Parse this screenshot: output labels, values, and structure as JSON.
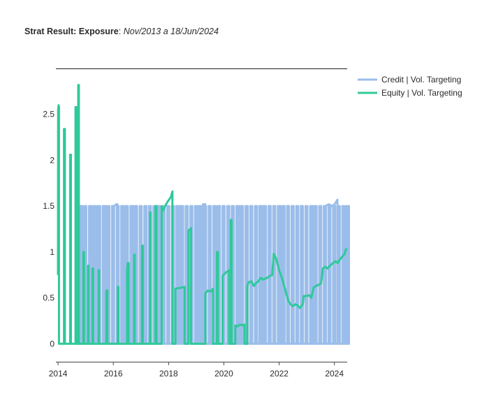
{
  "title": {
    "bold": "Strat Result: Exposure",
    "separator": ": ",
    "italic": "Nov/2013 a 18/Jun/2024"
  },
  "chart_data": {
    "type": "line",
    "xlabel": "",
    "ylabel": "",
    "x_range": [
      "2013-12-31",
      "2024-06-18"
    ],
    "ylim": [
      -0.15,
      3.0
    ],
    "x_ticks": [
      "2014",
      "2016",
      "2018",
      "2020",
      "2022",
      "2024"
    ],
    "y_ticks": [
      "0",
      "0.5",
      "1",
      "1.5",
      "2",
      "2.5"
    ],
    "grid": false,
    "legend_position": "top-right",
    "series": [
      {
        "name": "Credit | Vol. Targeting",
        "color": "#9bbdea",
        "pattern": "monthly on/off pulses",
        "points": [
          [
            "2014-09-01",
            0
          ],
          [
            "2014-10-15",
            0
          ],
          [
            "2014-10-15",
            1.5
          ],
          [
            "2014-11-20",
            1.5
          ],
          [
            "2014-11-20",
            0
          ],
          [
            "2015-03-01",
            0
          ],
          [
            "2015-03-01",
            1.5
          ],
          [
            "2015-03-25",
            1.5
          ],
          [
            "2015-03-25",
            0
          ],
          [
            "2015-05-01",
            0
          ],
          [
            "2015-05-01",
            1.5
          ],
          [
            "2015-05-25",
            1.5
          ],
          [
            "2015-05-25",
            0
          ],
          [
            "2015-09-01",
            0
          ],
          [
            "2015-09-01",
            1.5
          ],
          [
            "2015-09-25",
            1.5
          ],
          [
            "2015-09-25",
            0
          ],
          [
            "2016-01-10",
            0
          ],
          [
            "2016-01-10",
            1.5
          ],
          [
            "2016-02-10",
            1.52
          ],
          [
            "2016-02-25",
            1.52
          ],
          [
            "2016-02-25",
            0
          ],
          [
            "2016-05-01",
            0
          ],
          [
            "2016-05-01",
            1.5
          ],
          [
            "2016-05-25",
            1.5
          ],
          [
            "2016-05-25",
            0
          ],
          [
            "2016-09-01",
            0
          ],
          [
            "2016-09-01",
            1.5
          ],
          [
            "2016-09-25",
            1.5
          ],
          [
            "2016-09-25",
            0
          ],
          [
            "2017-08-01",
            0
          ],
          [
            "2017-08-01",
            1.5
          ],
          [
            "2017-08-25",
            1.5
          ],
          [
            "2017-08-25",
            0
          ],
          [
            "2018-06-01",
            0
          ],
          [
            "2018-06-01",
            1.5
          ],
          [
            "2018-06-25",
            1.5
          ],
          [
            "2018-06-25",
            0
          ],
          [
            "2019-01-01",
            0
          ],
          [
            "2019-01-01",
            1.5
          ],
          [
            "2019-01-25",
            1.5
          ],
          [
            "2019-01-25",
            0
          ],
          [
            "2019-04-01",
            0
          ],
          [
            "2019-04-01",
            1.52
          ],
          [
            "2019-05-01",
            1.52
          ],
          [
            "2019-05-01",
            0
          ],
          [
            "2019-10-01",
            0
          ],
          [
            "2019-10-01",
            1.5
          ],
          [
            "2019-10-25",
            1.5
          ],
          [
            "2019-10-25",
            0
          ],
          [
            "2020-07-01",
            0
          ],
          [
            "2020-07-01",
            1.5
          ],
          [
            "2020-07-25",
            1.5
          ],
          [
            "2020-07-25",
            0
          ],
          [
            "2021-06-01",
            0
          ],
          [
            "2021-06-01",
            1.5
          ],
          [
            "2021-06-25",
            1.5
          ],
          [
            "2021-06-25",
            0
          ],
          [
            "2022-01-01",
            0
          ],
          [
            "2022-01-01",
            1.5
          ],
          [
            "2022-01-25",
            1.5
          ],
          [
            "2022-01-25",
            0
          ],
          [
            "2023-03-01",
            0
          ],
          [
            "2023-03-01",
            1.5
          ],
          [
            "2023-03-25",
            1.5
          ],
          [
            "2023-03-25",
            0
          ],
          [
            "2023-09-01",
            0
          ],
          [
            "2023-09-01",
            1.5
          ],
          [
            "2023-10-20",
            1.52
          ],
          [
            "2023-12-01",
            1.5
          ],
          [
            "2024-01-05",
            1.52
          ],
          [
            "2024-02-10",
            1.57
          ],
          [
            "2024-02-10",
            0
          ],
          [
            "2024-06-05",
            0
          ],
          [
            "2024-06-05",
            1.5
          ],
          [
            "2024-06-18",
            1.5
          ],
          [
            "2024-06-18",
            0
          ]
        ]
      },
      {
        "name": "Equity | Vol. Targeting",
        "color": "#2fc99a",
        "pattern": "explicit path",
        "points": [
          [
            "2013-12-31",
            0.75
          ],
          [
            "2014-01-02",
            2.55
          ],
          [
            "2014-01-08",
            2.6
          ],
          [
            "2014-01-13",
            2.58
          ],
          [
            "2014-01-13",
            0
          ],
          [
            "2014-03-20",
            0
          ],
          [
            "2014-03-20",
            2.34
          ],
          [
            "2014-04-01",
            2.34
          ],
          [
            "2014-04-01",
            0
          ],
          [
            "2014-06-10",
            0
          ],
          [
            "2014-06-10",
            2.06
          ],
          [
            "2014-06-20",
            2.06
          ],
          [
            "2014-06-20",
            0
          ],
          [
            "2014-08-20",
            0
          ],
          [
            "2014-08-20",
            2.58
          ],
          [
            "2014-08-30",
            2.58
          ],
          [
            "2014-08-30",
            0
          ],
          [
            "2014-09-25",
            0
          ],
          [
            "2014-09-25",
            2.82
          ],
          [
            "2014-10-03",
            2.82
          ],
          [
            "2014-10-03",
            0
          ],
          [
            "2014-12-01",
            0
          ],
          [
            "2014-12-01",
            1.0
          ],
          [
            "2014-12-10",
            1.0
          ],
          [
            "2014-12-10",
            0
          ],
          [
            "2015-02-01",
            0
          ],
          [
            "2015-02-01",
            0.85
          ],
          [
            "2015-02-08",
            0.85
          ],
          [
            "2015-02-08",
            0
          ],
          [
            "2015-04-01",
            0
          ],
          [
            "2015-04-01",
            0.82
          ],
          [
            "2015-04-08",
            0.82
          ],
          [
            "2015-04-08",
            0
          ],
          [
            "2015-06-20",
            0
          ],
          [
            "2015-06-20",
            0.8
          ],
          [
            "2015-06-28",
            0.8
          ],
          [
            "2015-06-28",
            0
          ],
          [
            "2015-10-01",
            0
          ],
          [
            "2015-10-01",
            0.58
          ],
          [
            "2015-10-15",
            0.58
          ],
          [
            "2015-10-15",
            0
          ],
          [
            "2016-03-01",
            0
          ],
          [
            "2016-03-01",
            0.62
          ],
          [
            "2016-03-10",
            0.62
          ],
          [
            "2016-03-10",
            0
          ],
          [
            "2016-07-01",
            0
          ],
          [
            "2016-07-01",
            0.8
          ],
          [
            "2016-07-10",
            0.88
          ],
          [
            "2016-07-20",
            0.88
          ],
          [
            "2016-07-20",
            0
          ],
          [
            "2016-10-01",
            0
          ],
          [
            "2016-10-01",
            0.97
          ],
          [
            "2016-10-10",
            0.97
          ],
          [
            "2016-10-10",
            0
          ],
          [
            "2017-01-15",
            0
          ],
          [
            "2017-01-15",
            1.07
          ],
          [
            "2017-01-25",
            1.07
          ],
          [
            "2017-01-25",
            0
          ],
          [
            "2017-05-01",
            0
          ],
          [
            "2017-05-01",
            1.43
          ],
          [
            "2017-05-10",
            1.43
          ],
          [
            "2017-05-10",
            0
          ],
          [
            "2017-07-10",
            0
          ],
          [
            "2017-07-10",
            1.5
          ],
          [
            "2017-07-25",
            1.5
          ],
          [
            "2017-07-25",
            0
          ],
          [
            "2017-10-01",
            0
          ],
          [
            "2017-10-01",
            1.5
          ],
          [
            "2017-10-20",
            1.45
          ],
          [
            "2017-11-15",
            1.5
          ],
          [
            "2017-12-20",
            1.55
          ],
          [
            "2018-02-01",
            1.6
          ],
          [
            "2018-02-20",
            1.66
          ],
          [
            "2018-02-20",
            0
          ],
          [
            "2018-04-01",
            0
          ],
          [
            "2018-04-01",
            0.6
          ],
          [
            "2018-06-10",
            0.61
          ],
          [
            "2018-08-01",
            0.62
          ],
          [
            "2018-08-01",
            0
          ],
          [
            "2018-09-20",
            0
          ],
          [
            "2018-09-20",
            1.23
          ],
          [
            "2018-10-25",
            1.26
          ],
          [
            "2018-10-25",
            0
          ],
          [
            "2019-05-01",
            0
          ],
          [
            "2019-05-01",
            0.55
          ],
          [
            "2019-06-01",
            0.58
          ],
          [
            "2019-07-15",
            0.57
          ],
          [
            "2019-08-10",
            0.6
          ],
          [
            "2019-08-10",
            0
          ],
          [
            "2019-10-01",
            0
          ],
          [
            "2019-10-01",
            1.0
          ],
          [
            "2019-10-15",
            1.0
          ],
          [
            "2019-10-15",
            0
          ],
          [
            "2019-12-15",
            0
          ],
          [
            "2019-12-15",
            0.74
          ],
          [
            "2020-02-01",
            0.78
          ],
          [
            "2020-03-10",
            0.8
          ],
          [
            "2020-03-10",
            0
          ],
          [
            "2020-04-01",
            0
          ],
          [
            "2020-04-01",
            1.35
          ],
          [
            "2020-04-12",
            1.35
          ],
          [
            "2020-04-12",
            0
          ],
          [
            "2020-06-01",
            0
          ],
          [
            "2020-06-01",
            0.2
          ],
          [
            "2020-07-01",
            0.19
          ],
          [
            "2020-08-01",
            0.21
          ],
          [
            "2020-09-01",
            0.2
          ],
          [
            "2020-10-01",
            0.21
          ],
          [
            "2020-10-01",
            0
          ],
          [
            "2020-11-05",
            0
          ],
          [
            "2020-11-05",
            0.62
          ],
          [
            "2020-11-20",
            0.67
          ],
          [
            "2021-01-01",
            0.68
          ],
          [
            "2021-02-01",
            0.63
          ],
          [
            "2021-03-01",
            0.66
          ],
          [
            "2021-04-01",
            0.68
          ],
          [
            "2021-05-01",
            0.72
          ],
          [
            "2021-06-01",
            0.7
          ],
          [
            "2021-07-01",
            0.71
          ],
          [
            "2021-08-01",
            0.72
          ],
          [
            "2021-09-01",
            0.74
          ],
          [
            "2021-10-01",
            0.75
          ],
          [
            "2021-10-20",
            0.98
          ],
          [
            "2021-11-10",
            0.95
          ],
          [
            "2021-12-01",
            0.9
          ],
          [
            "2022-01-01",
            0.8
          ],
          [
            "2022-02-01",
            0.73
          ],
          [
            "2022-03-01",
            0.65
          ],
          [
            "2022-04-01",
            0.56
          ],
          [
            "2022-05-01",
            0.47
          ],
          [
            "2022-06-01",
            0.43
          ],
          [
            "2022-07-01",
            0.41
          ],
          [
            "2022-08-01",
            0.43
          ],
          [
            "2022-09-01",
            0.42
          ],
          [
            "2022-10-01",
            0.39
          ],
          [
            "2022-11-10",
            0.43
          ],
          [
            "2022-11-20",
            0.52
          ],
          [
            "2023-01-01",
            0.52
          ],
          [
            "2023-02-01",
            0.53
          ],
          [
            "2023-03-01",
            0.5
          ],
          [
            "2023-04-01",
            0.61
          ],
          [
            "2023-05-01",
            0.63
          ],
          [
            "2023-06-01",
            0.64
          ],
          [
            "2023-07-10",
            0.66
          ],
          [
            "2023-08-01",
            0.82
          ],
          [
            "2023-09-01",
            0.84
          ],
          [
            "2023-10-01",
            0.82
          ],
          [
            "2023-11-01",
            0.85
          ],
          [
            "2023-12-15",
            0.88
          ],
          [
            "2024-01-15",
            0.9
          ],
          [
            "2024-02-15",
            0.88
          ],
          [
            "2024-03-15",
            0.92
          ],
          [
            "2024-04-15",
            0.95
          ],
          [
            "2024-05-15",
            0.98
          ],
          [
            "2024-06-01",
            1.03
          ],
          [
            "2024-06-18",
            1.02
          ]
        ]
      }
    ]
  }
}
